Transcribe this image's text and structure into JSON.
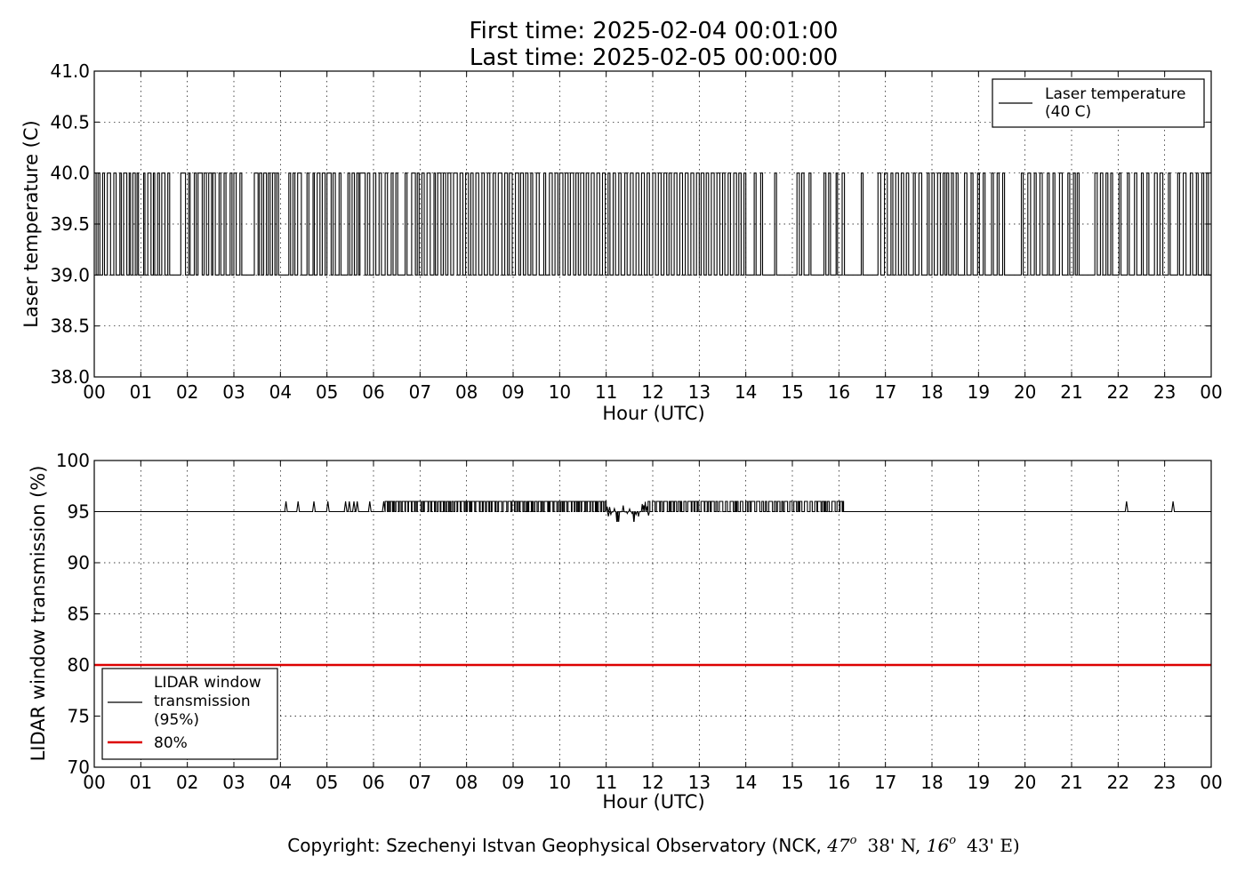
{
  "header": {
    "title_line1": "First time: 2025-02-04 00:01:00",
    "title_line2": "Last time: 2025-02-05 00:00:00"
  },
  "footer": {
    "copyright_prefix": "Copyright: Szechenyi Istvan Geophysical Observatory (NCK, ",
    "lat_deg": "47",
    "lat_rest": "38' N, ",
    "lon_deg": "16",
    "lon_rest": "43' E)",
    "degree_mark": "o"
  },
  "colors": {
    "series_line": "#000000",
    "threshold_line": "#dd0000",
    "grid": "#000000",
    "background": "#ffffff"
  },
  "chart_data": [
    {
      "type": "line",
      "title": "",
      "xlabel": "Hour (UTC)",
      "ylabel": "Laser temperature (C)",
      "xlim": [
        0,
        24
      ],
      "ylim": [
        38.0,
        41.0
      ],
      "xticks": [
        "00",
        "01",
        "02",
        "03",
        "04",
        "05",
        "06",
        "07",
        "08",
        "09",
        "10",
        "11",
        "12",
        "13",
        "14",
        "15",
        "16",
        "17",
        "18",
        "19",
        "20",
        "21",
        "22",
        "23",
        "00"
      ],
      "yticks": [
        "38.0",
        "38.5",
        "39.0",
        "39.5",
        "40.0",
        "40.5",
        "41.0"
      ],
      "grid": true,
      "legend_position": "top-right",
      "series": [
        {
          "name": "Laser temperature\n(40 C)",
          "baseline": 39.0,
          "alt_value": 40.0,
          "description_of_shape": "square-wave switching between 39.0 and 40.0",
          "high_intervals": [
            [
              0.08,
              0.12
            ],
            [
              0.18,
              0.22
            ],
            [
              0.28,
              0.35
            ],
            [
              0.42,
              0.47
            ],
            [
              0.55,
              0.58
            ],
            [
              0.63,
              0.7
            ],
            [
              0.75,
              0.78
            ],
            [
              0.83,
              0.88
            ],
            [
              0.92,
              0.95
            ],
            [
              1.06,
              1.09
            ],
            [
              1.15,
              1.22
            ],
            [
              1.27,
              1.3
            ],
            [
              1.36,
              1.4
            ],
            [
              1.45,
              1.52
            ],
            [
              1.58,
              1.62
            ],
            [
              1.86,
              1.96
            ],
            [
              2.03,
              2.06
            ],
            [
              2.15,
              2.19
            ],
            [
              2.23,
              2.32
            ],
            [
              2.36,
              2.41
            ],
            [
              2.46,
              2.52
            ],
            [
              2.55,
              2.6
            ],
            [
              2.68,
              2.72
            ],
            [
              2.79,
              2.83
            ],
            [
              2.92,
              2.96
            ],
            [
              3.0,
              3.05
            ],
            [
              3.13,
              3.17
            ],
            [
              3.44,
              3.52
            ],
            [
              3.55,
              3.6
            ],
            [
              3.64,
              3.7
            ],
            [
              3.74,
              3.78
            ],
            [
              3.83,
              3.88
            ],
            [
              3.92,
              3.96
            ],
            [
              4.18,
              4.22
            ],
            [
              4.27,
              4.31
            ],
            [
              4.37,
              4.45
            ],
            [
              4.57,
              4.61
            ],
            [
              4.7,
              4.73
            ],
            [
              4.79,
              4.85
            ],
            [
              4.9,
              4.96
            ],
            [
              5.0,
              5.09
            ],
            [
              5.13,
              5.18
            ],
            [
              5.26,
              5.3
            ],
            [
              5.45,
              5.49
            ],
            [
              5.54,
              5.59
            ],
            [
              5.64,
              5.68
            ],
            [
              5.71,
              5.82
            ],
            [
              5.87,
              5.92
            ],
            [
              6.0,
              6.05
            ],
            [
              6.12,
              6.17
            ],
            [
              6.25,
              6.3
            ],
            [
              6.38,
              6.42
            ],
            [
              6.48,
              6.52
            ],
            [
              6.68,
              6.72
            ],
            [
              6.82,
              6.9
            ],
            [
              6.94,
              6.98
            ],
            [
              7.04,
              7.09
            ],
            [
              7.15,
              7.22
            ],
            [
              7.3,
              7.33
            ],
            [
              7.38,
              7.45
            ],
            [
              7.5,
              7.55
            ],
            [
              7.6,
              7.66
            ],
            [
              7.72,
              7.8
            ],
            [
              7.86,
              7.92
            ],
            [
              7.98,
              8.04
            ],
            [
              8.09,
              8.14
            ],
            [
              8.2,
              8.26
            ],
            [
              8.33,
              8.38
            ],
            [
              8.45,
              8.5
            ],
            [
              8.57,
              8.62
            ],
            [
              8.68,
              8.76
            ],
            [
              8.82,
              8.88
            ],
            [
              8.92,
              8.98
            ],
            [
              9.05,
              9.12
            ],
            [
              9.16,
              9.22
            ],
            [
              9.27,
              9.32
            ],
            [
              9.38,
              9.42
            ],
            [
              9.5,
              9.56
            ],
            [
              9.66,
              9.7
            ],
            [
              9.78,
              9.84
            ],
            [
              9.9,
              9.96
            ],
            [
              10.0,
              10.07
            ],
            [
              10.12,
              10.18
            ],
            [
              10.23,
              10.3
            ],
            [
              10.35,
              10.4
            ],
            [
              10.45,
              10.52
            ],
            [
              10.57,
              10.62
            ],
            [
              10.68,
              10.74
            ],
            [
              10.8,
              10.86
            ],
            [
              10.92,
              10.98
            ],
            [
              11.04,
              11.08
            ],
            [
              11.15,
              11.2
            ],
            [
              11.27,
              11.32
            ],
            [
              11.4,
              11.45
            ],
            [
              11.52,
              11.58
            ],
            [
              11.64,
              11.7
            ],
            [
              11.76,
              11.82
            ],
            [
              11.88,
              11.93
            ],
            [
              12.0,
              12.06
            ],
            [
              12.12,
              12.18
            ],
            [
              12.24,
              12.3
            ],
            [
              12.35,
              12.4
            ],
            [
              12.46,
              12.52
            ],
            [
              12.58,
              12.64
            ],
            [
              12.7,
              12.76
            ],
            [
              12.82,
              12.88
            ],
            [
              12.94,
              13.0
            ],
            [
              13.04,
              13.1
            ],
            [
              13.15,
              13.2
            ],
            [
              13.26,
              13.32
            ],
            [
              13.38,
              13.44
            ],
            [
              13.5,
              13.55
            ],
            [
              13.62,
              13.67
            ],
            [
              13.74,
              13.8
            ],
            [
              13.85,
              13.9
            ],
            [
              13.96,
              14.0
            ],
            [
              14.18,
              14.22
            ],
            [
              14.32,
              14.36
            ],
            [
              14.62,
              14.66
            ],
            [
              15.1,
              15.15
            ],
            [
              15.2,
              15.25
            ],
            [
              15.36,
              15.4
            ],
            [
              15.68,
              15.72
            ],
            [
              15.78,
              15.82
            ],
            [
              15.94,
              15.97
            ],
            [
              16.07,
              16.12
            ],
            [
              16.48,
              16.52
            ],
            [
              16.84,
              16.9
            ],
            [
              16.98,
              17.04
            ],
            [
              17.12,
              17.16
            ],
            [
              17.22,
              17.28
            ],
            [
              17.34,
              17.39
            ],
            [
              17.45,
              17.5
            ],
            [
              17.6,
              17.64
            ],
            [
              17.72,
              17.78
            ],
            [
              17.9,
              17.94
            ],
            [
              18.0,
              18.05
            ],
            [
              18.12,
              18.18
            ],
            [
              18.24,
              18.28
            ],
            [
              18.32,
              18.36
            ],
            [
              18.42,
              18.46
            ],
            [
              18.52,
              18.56
            ],
            [
              18.7,
              18.75
            ],
            [
              18.84,
              18.88
            ],
            [
              18.98,
              19.02
            ],
            [
              19.1,
              19.14
            ],
            [
              19.28,
              19.32
            ],
            [
              19.4,
              19.44
            ],
            [
              19.52,
              19.56
            ],
            [
              19.92,
              19.96
            ],
            [
              20.06,
              20.12
            ],
            [
              20.2,
              20.24
            ],
            [
              20.32,
              20.37
            ],
            [
              20.48,
              20.52
            ],
            [
              20.6,
              20.64
            ],
            [
              20.74,
              20.8
            ],
            [
              20.92,
              20.96
            ],
            [
              21.04,
              21.08
            ],
            [
              21.12,
              21.16
            ],
            [
              21.5,
              21.55
            ],
            [
              21.62,
              21.67
            ],
            [
              21.74,
              21.78
            ],
            [
              21.84,
              21.88
            ],
            [
              22.02,
              22.06
            ],
            [
              22.2,
              22.24
            ],
            [
              22.35,
              22.4
            ],
            [
              22.5,
              22.54
            ],
            [
              22.62,
              22.66
            ],
            [
              22.78,
              22.84
            ],
            [
              22.9,
              22.96
            ],
            [
              23.08,
              23.12
            ],
            [
              23.28,
              23.32
            ],
            [
              23.4,
              23.46
            ],
            [
              23.55,
              23.6
            ],
            [
              23.68,
              23.72
            ],
            [
              23.8,
              23.84
            ],
            [
              23.9,
              23.94
            ]
          ]
        }
      ]
    },
    {
      "type": "line",
      "title": "",
      "xlabel": "Hour (UTC)",
      "ylabel": "LIDAR window transmission (%)",
      "xlim": [
        0,
        24
      ],
      "ylim": [
        70,
        100
      ],
      "xticks": [
        "00",
        "01",
        "02",
        "03",
        "04",
        "05",
        "06",
        "07",
        "08",
        "09",
        "10",
        "11",
        "12",
        "13",
        "14",
        "15",
        "16",
        "17",
        "18",
        "19",
        "20",
        "21",
        "22",
        "23",
        "00"
      ],
      "yticks": [
        "70",
        "75",
        "80",
        "85",
        "90",
        "95",
        "100"
      ],
      "grid": true,
      "legend_position": "bottom-left",
      "series": [
        {
          "name": "LIDAR window\ntransmission\n(95%)",
          "baseline": 95,
          "spikes_up_to_96": [
            4.12,
            4.38,
            4.72,
            5.02,
            5.4,
            5.48,
            5.58,
            5.65,
            5.92,
            6.22
          ],
          "dense_band_96": [
            [
              6.25,
              11.0
            ],
            [
              11.9,
              16.1
            ]
          ],
          "mixed_band": [
            [
              11.0,
              11.9
            ]
          ],
          "dips_to_94": [
            11.22,
            11.58
          ],
          "late_spikes_96": [
            22.18,
            23.18
          ]
        },
        {
          "name": "80%",
          "constant": 80
        }
      ]
    }
  ]
}
